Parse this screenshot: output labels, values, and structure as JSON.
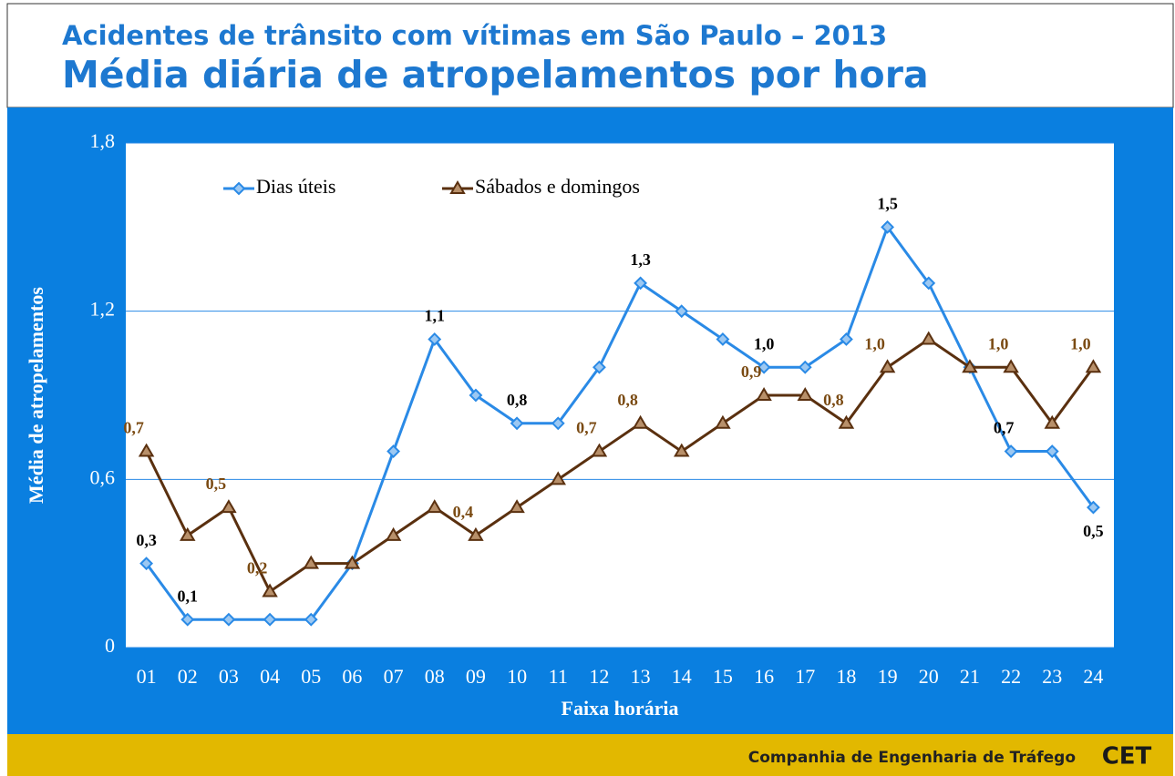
{
  "chart_data": {
    "type": "line",
    "title": "Acidentes de trânsito com vítimas em São Paulo – 2013",
    "subtitle": "Média diária de atropelamentos por hora",
    "x_label": "Faixa horária",
    "y_label": "Média de  atropelamentos",
    "footer": "Companhia de Engenharia de Tráfego",
    "logo": "CET",
    "categories": [
      "01",
      "02",
      "03",
      "04",
      "05",
      "06",
      "07",
      "08",
      "09",
      "10",
      "11",
      "12",
      "13",
      "14",
      "15",
      "16",
      "17",
      "18",
      "19",
      "20",
      "21",
      "22",
      "23",
      "24"
    ],
    "series": [
      {
        "name": "Dias úteis",
        "color": "#2a8ae6",
        "label_color": "#000000",
        "values": [
          0.3,
          0.1,
          0.1,
          0.1,
          0.1,
          0.3,
          0.7,
          1.1,
          0.9,
          0.8,
          0.8,
          1.0,
          1.3,
          1.2,
          1.1,
          1.0,
          1.0,
          1.1,
          1.5,
          1.3,
          1.0,
          0.7,
          0.7,
          0.5
        ],
        "value_labels": [
          "0,3",
          "0,1",
          null,
          null,
          null,
          null,
          null,
          "1,1",
          null,
          "0,8",
          null,
          null,
          "1,3",
          null,
          null,
          "1,0",
          null,
          null,
          "1,5",
          null,
          null,
          "0,7",
          null,
          "0,5"
        ]
      },
      {
        "name": "Sábados e domingos",
        "color": "#5a300f",
        "label_color": "#7a4a12",
        "values": [
          0.7,
          0.4,
          0.5,
          0.2,
          0.3,
          0.3,
          0.4,
          0.5,
          0.4,
          0.5,
          0.6,
          0.7,
          0.8,
          0.7,
          0.8,
          0.9,
          0.9,
          0.8,
          1.0,
          1.1,
          1.0,
          1.0,
          0.8,
          1.0
        ],
        "value_labels": [
          "0,7",
          null,
          "0,5",
          "0,2",
          null,
          null,
          null,
          null,
          "0,4",
          null,
          null,
          "0,7",
          "0,8",
          null,
          null,
          "0,9",
          null,
          "0,8",
          "1,0",
          null,
          null,
          "1,0",
          null,
          "1,0"
        ]
      }
    ],
    "ylim": [
      0,
      1.8
    ],
    "yticks": [
      0,
      {
        "value": 0.6,
        "label": "0,6"
      },
      {
        "value": 1.2,
        "label": "1,2"
      },
      {
        "value": 1.8,
        "label": "1,8"
      }
    ],
    "grid": true,
    "legend": "top-left"
  }
}
